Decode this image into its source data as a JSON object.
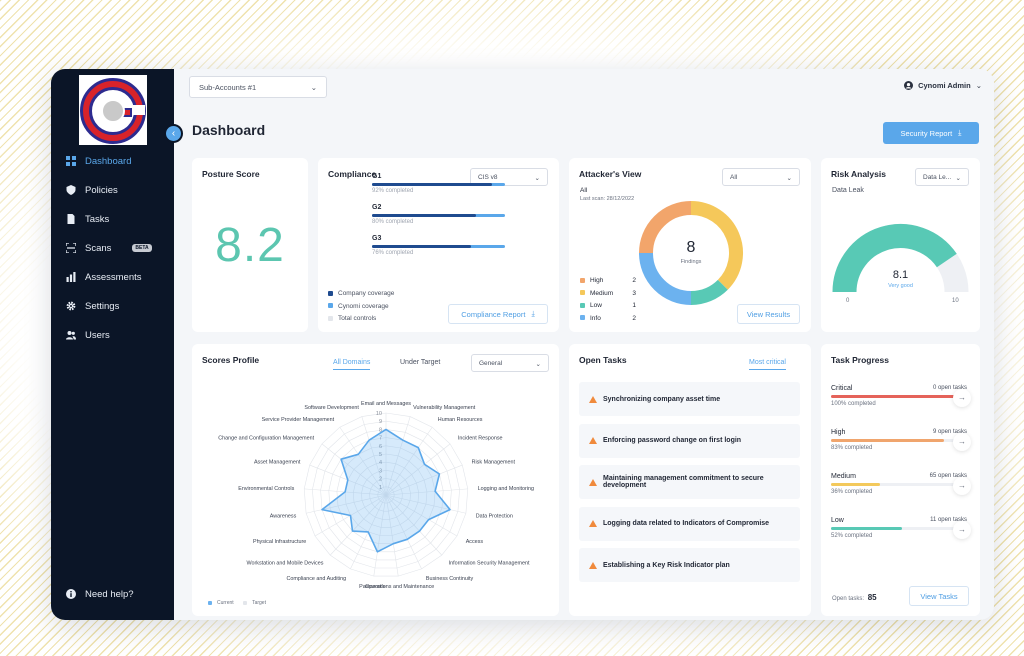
{
  "brand": {
    "logo_letter": "G",
    "colors": {
      "accent": "#5aa7ea",
      "sidebar": "#0b1527"
    }
  },
  "sidebar": {
    "items": [
      {
        "label": "Dashboard",
        "icon": "grid-icon",
        "active": true
      },
      {
        "label": "Policies",
        "icon": "shield-icon"
      },
      {
        "label": "Tasks",
        "icon": "document-icon"
      },
      {
        "label": "Scans",
        "icon": "scan-icon",
        "badge": "BETA"
      },
      {
        "label": "Assessments",
        "icon": "bar-chart-icon"
      },
      {
        "label": "Settings",
        "icon": "gear-icon"
      },
      {
        "label": "Users",
        "icon": "users-icon"
      }
    ],
    "help": "Need help?"
  },
  "topbar": {
    "account_select": "Sub-Accounts #1",
    "user": "Cynomi Admin"
  },
  "page": {
    "title": "Dashboard",
    "report_button": "Security Report"
  },
  "posture": {
    "title": "Posture Score",
    "score": "8.2"
  },
  "compliance": {
    "title": "Compliance",
    "framework": "CIS v8",
    "groups": [
      {
        "name": "G1",
        "completed": "92% completed",
        "company": 0.92
      },
      {
        "name": "G2",
        "completed": "80% completed",
        "company": 0.8
      },
      {
        "name": "G3",
        "completed": "76% completed",
        "company": 0.76
      }
    ],
    "legend": [
      "Company coverage",
      "Cynomi coverage",
      "Total controls"
    ],
    "report_button": "Compliance Report"
  },
  "attacker": {
    "title": "Attacker's View",
    "filter": "All",
    "scope": "All",
    "last_scan": "Last scan: 28/12/2022",
    "total": "8",
    "total_label": "Findings",
    "findings": [
      {
        "label": "High",
        "count": "2",
        "value": 2,
        "color": "#f2a56b"
      },
      {
        "label": "Medium",
        "count": "3",
        "value": 3,
        "color": "#f5c85a"
      },
      {
        "label": "Low",
        "count": "1",
        "value": 1,
        "color": "#58c9b5"
      },
      {
        "label": "Info",
        "count": "2",
        "value": 2,
        "color": "#6cb2ef"
      }
    ],
    "results_button": "View Results"
  },
  "risk": {
    "title": "Risk Analysis",
    "select": "Data Le...",
    "subtitle": "Data Leak",
    "score": "8.1",
    "score_value": 8.1,
    "rating": "Very good",
    "min": "0",
    "max": "10"
  },
  "scores": {
    "title": "Scores Profile",
    "tabs": [
      "All Domains",
      "Under Target"
    ],
    "select": "General",
    "rings": [
      "1",
      "2",
      "3",
      "4",
      "5",
      "6",
      "7",
      "8",
      "9",
      "10"
    ],
    "legend": [
      "Current",
      "Target"
    ]
  },
  "chart_data": {
    "type": "radar",
    "categories": [
      "Email and Messages",
      "Vulnerability Management",
      "Human Resources",
      "Incident Response",
      "Risk Management",
      "Logging and Monitoring",
      "Data Protection",
      "Access",
      "Information Security Management",
      "Business Continuity",
      "Operations and Maintenance",
      "Passwords",
      "Compliance and Auditing",
      "Workstation and Mobile Devices",
      "Physical Infrastructure",
      "Awareness",
      "Environmental Controls",
      "Asset Management",
      "Change and Configuration Management",
      "Service Provider Management",
      "Software Development"
    ],
    "series": [
      {
        "name": "Current",
        "values": [
          8,
          7,
          7,
          6,
          7,
          6,
          8,
          6,
          6,
          6,
          6,
          7,
          5,
          6,
          5,
          8,
          5,
          5,
          7,
          6,
          7
        ]
      }
    ],
    "rlim": [
      0,
      10
    ]
  },
  "open_tasks": {
    "title": "Open Tasks",
    "filter": "Most critical",
    "items": [
      "Synchronizing company asset time",
      "Enforcing password change on first login",
      "Maintaining management commitment to secure development",
      "Logging data related to Indicators of Compromise",
      "Establishing a Key Risk Indicator plan"
    ]
  },
  "task_progress": {
    "title": "Task Progress",
    "rows": [
      {
        "label": "Critical",
        "open": "0 open tasks",
        "completed": "100% completed",
        "value": 1.0,
        "color": "#e5635a"
      },
      {
        "label": "High",
        "open": "9 open tasks",
        "completed": "83% completed",
        "value": 0.83,
        "color": "#f0a56d"
      },
      {
        "label": "Medium",
        "open": "65 open tasks",
        "completed": "36% completed",
        "value": 0.36,
        "color": "#f3c95c"
      },
      {
        "label": "Low",
        "open": "11 open tasks",
        "completed": "52% completed",
        "value": 0.52,
        "color": "#58c9b5"
      }
    ],
    "open_label": "Open tasks:",
    "open_total": "85",
    "view_button": "View Tasks"
  }
}
